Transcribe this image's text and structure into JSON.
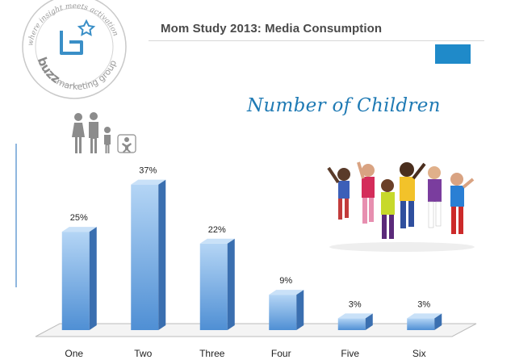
{
  "slide": {
    "title": "Mom Study 2013: Media Consumption",
    "heading": "Number of Children"
  },
  "logo": {
    "brand_top": "buzz",
    "brand_bottom": "marketing group",
    "tagline": "where insight meets activation"
  },
  "colors": {
    "accent": "#1f8ac9",
    "heading": "#1f7ab4",
    "bar_front_top": "#b4d5f5",
    "bar_front_bottom": "#4f8fd4",
    "bar_side": "#3a6fb0",
    "bar_top": "#c9e1f8"
  },
  "chart_data": {
    "type": "bar",
    "title": "Number of Children",
    "categories": [
      "One",
      "Two",
      "Three",
      "Four",
      "Five",
      "Six"
    ],
    "values": [
      25,
      37,
      22,
      9,
      3,
      3
    ],
    "value_labels": [
      "25%",
      "37%",
      "22%",
      "9%",
      "3%",
      "3%"
    ],
    "unit": "%",
    "ylim": [
      0,
      40
    ],
    "xlabel": "",
    "ylabel": "",
    "grid": false,
    "legend": "none",
    "style": "3d-column"
  }
}
